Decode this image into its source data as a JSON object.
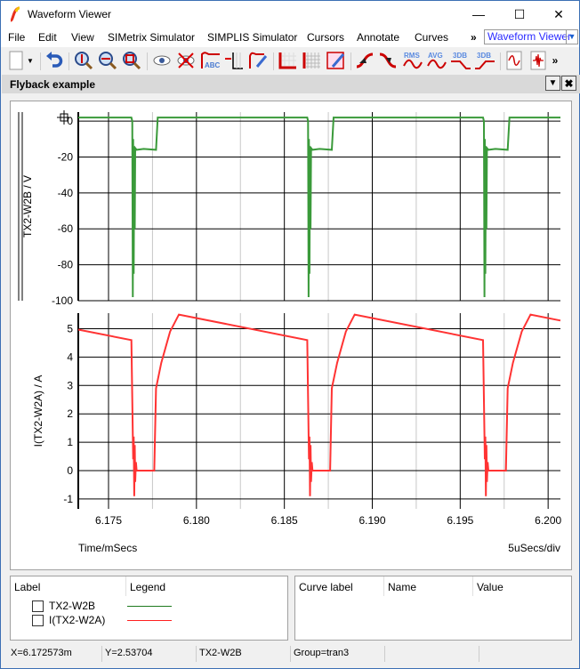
{
  "window": {
    "title": "Waveform Viewer",
    "minimize_icon": "minimize-icon",
    "maximize_icon": "maximize-icon",
    "close_icon": "close-icon"
  },
  "menu": [
    "File",
    "Edit",
    "View",
    "SIMetrix Simulator",
    "SIMPLIS Simulator",
    "Cursors",
    "Annotate",
    "Curves"
  ],
  "menu_overflow": "»",
  "view_selector": "Waveform Viewer",
  "toolbar": {
    "icons": [
      "new-document-icon",
      "dropdown-icon",
      "undo-icon",
      "zoom-vertical-icon",
      "zoom-horizontal-icon",
      "zoom-box-icon",
      "show-curve-icon",
      "hide-curve-icon",
      "abc-label-icon",
      "add-axis-icon",
      "edit-curve-icon",
      "axes-icon",
      "grid-icon",
      "edit-grid-icon",
      "rising-edge-icon",
      "falling-edge-icon",
      "rms-icon",
      "avg-icon",
      "3db-low-icon",
      "3db-high-icon",
      "waveform-icon",
      "fft-icon"
    ],
    "rms_label": "RMS",
    "avg_label": "AVG",
    "db3_low_label": "3DB",
    "db3_high_label": "3DB",
    "abc_label": "ABC",
    "overflow": "»"
  },
  "panel": {
    "title": "Flyback example"
  },
  "chart_data": [
    {
      "type": "line",
      "ylabel": "TX2-W2B / V",
      "xlim": [
        6.17328,
        6.2007
      ],
      "ylim": [
        -100,
        5
      ],
      "yticks": [
        0,
        -20,
        -40,
        -60,
        -80,
        -100
      ],
      "grid": true,
      "series": [
        {
          "name": "TX2-W2B",
          "color": "#3a9a3a",
          "points": [
            [
              6.17328,
              2
            ],
            [
              6.1763,
              2
            ],
            [
              6.17635,
              0
            ],
            [
              6.17638,
              -98
            ],
            [
              6.1764,
              -10
            ],
            [
              6.17643,
              -85
            ],
            [
              6.17646,
              -14
            ],
            [
              6.17649,
              -60
            ],
            [
              6.17652,
              -15
            ],
            [
              6.1766,
              -16
            ],
            [
              6.177,
              -15.5
            ],
            [
              6.1777,
              -16
            ],
            [
              6.1778,
              2
            ],
            [
              6.1863,
              2
            ],
            [
              6.18635,
              0
            ],
            [
              6.18638,
              -98
            ],
            [
              6.1864,
              -10
            ],
            [
              6.18643,
              -85
            ],
            [
              6.18646,
              -14
            ],
            [
              6.18649,
              -60
            ],
            [
              6.18652,
              -15
            ],
            [
              6.1866,
              -16
            ],
            [
              6.187,
              -15.5
            ],
            [
              6.1877,
              -16
            ],
            [
              6.1878,
              2
            ],
            [
              6.1963,
              2
            ],
            [
              6.19635,
              0
            ],
            [
              6.19638,
              -98
            ],
            [
              6.1964,
              -10
            ],
            [
              6.19643,
              -85
            ],
            [
              6.19646,
              -14
            ],
            [
              6.19649,
              -60
            ],
            [
              6.19652,
              -15
            ],
            [
              6.1966,
              -16
            ],
            [
              6.197,
              -15.5
            ],
            [
              6.1977,
              -16
            ],
            [
              6.1978,
              2
            ],
            [
              6.2007,
              2
            ]
          ]
        }
      ]
    },
    {
      "type": "line",
      "ylabel": "I(TX2-W2A) / A",
      "xlabel": "Time/mSecs",
      "x_scale_label": "5uSecs/div",
      "xlim": [
        6.17328,
        6.2007
      ],
      "ylim": [
        -1.35,
        5.55
      ],
      "yticks": [
        5,
        4,
        3,
        2,
        1,
        0,
        -1
      ],
      "xticks": [
        "6.175",
        "6.180",
        "6.185",
        "6.190",
        "6.195",
        "6.200"
      ],
      "grid": true,
      "series": [
        {
          "name": "I(TX2-W2A)",
          "color": "#ff3333",
          "points": [
            [
              6.17328,
              4.97
            ],
            [
              6.1763,
              4.6
            ],
            [
              6.1764,
              0.4
            ],
            [
              6.17643,
              1.2
            ],
            [
              6.17646,
              -0.9
            ],
            [
              6.17649,
              0.9
            ],
            [
              6.17652,
              -0.4
            ],
            [
              6.17656,
              0.3
            ],
            [
              6.1766,
              0
            ],
            [
              6.1776,
              0
            ],
            [
              6.1777,
              2.9
            ],
            [
              6.178,
              3.8
            ],
            [
              6.1785,
              4.9
            ],
            [
              6.179,
              5.5
            ],
            [
              6.1863,
              4.6
            ],
            [
              6.1864,
              0.4
            ],
            [
              6.18643,
              1.2
            ],
            [
              6.18646,
              -0.9
            ],
            [
              6.18649,
              0.9
            ],
            [
              6.18652,
              -0.4
            ],
            [
              6.18656,
              0.3
            ],
            [
              6.1866,
              0
            ],
            [
              6.1876,
              0
            ],
            [
              6.1877,
              2.9
            ],
            [
              6.188,
              3.8
            ],
            [
              6.1885,
              4.9
            ],
            [
              6.189,
              5.5
            ],
            [
              6.1963,
              4.6
            ],
            [
              6.1964,
              0.4
            ],
            [
              6.19643,
              1.2
            ],
            [
              6.19646,
              -0.9
            ],
            [
              6.19649,
              0.9
            ],
            [
              6.19652,
              -0.4
            ],
            [
              6.19656,
              0.3
            ],
            [
              6.1966,
              0
            ],
            [
              6.1976,
              0
            ],
            [
              6.1977,
              2.9
            ],
            [
              6.198,
              3.8
            ],
            [
              6.1985,
              4.9
            ],
            [
              6.199,
              5.5
            ],
            [
              6.2007,
              5.29
            ]
          ]
        }
      ]
    }
  ],
  "legend": {
    "headers": {
      "label": "Label",
      "legend": "Legend"
    },
    "items": [
      {
        "label": "TX2-W2B",
        "color": "#1e7a1e"
      },
      {
        "label": "I(TX2-W2A)",
        "color": "#ff2020"
      }
    ]
  },
  "cursor_table": {
    "headers": [
      "Curve label",
      "Name",
      "Value"
    ]
  },
  "status": [
    "X=6.172573m",
    "Y=2.53704",
    "TX2-W2B",
    "Group=tran3"
  ]
}
